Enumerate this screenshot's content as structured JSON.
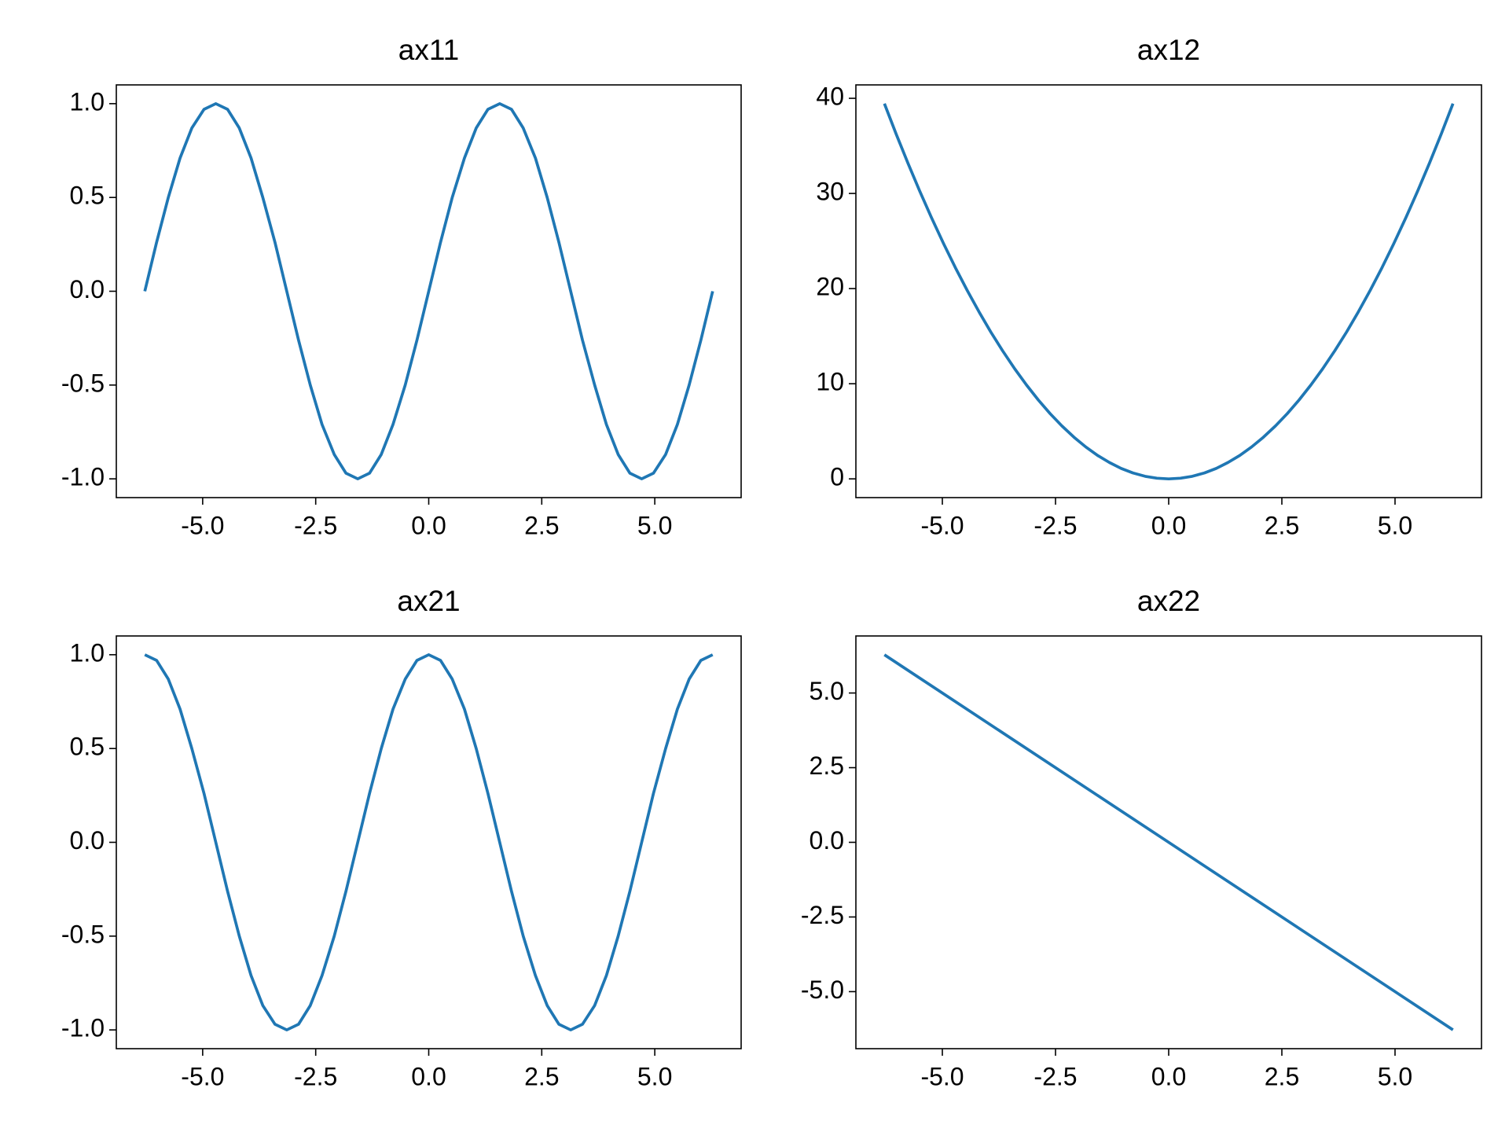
{
  "chart_data": [
    {
      "type": "line",
      "title": "ax11",
      "color": "#1f77b4",
      "x": [
        -6.28,
        -6.02,
        -5.76,
        -5.5,
        -5.24,
        -4.97,
        -4.71,
        -4.45,
        -4.19,
        -3.93,
        -3.67,
        -3.4,
        -3.14,
        -2.88,
        -2.62,
        -2.36,
        -2.09,
        -1.83,
        -1.57,
        -1.31,
        -1.05,
        -0.79,
        -0.52,
        -0.26,
        0,
        0.26,
        0.52,
        0.79,
        1.05,
        1.31,
        1.57,
        1.83,
        2.09,
        2.36,
        2.62,
        2.88,
        3.14,
        3.4,
        3.67,
        3.93,
        4.19,
        4.45,
        4.71,
        4.97,
        5.24,
        5.5,
        5.76,
        6.02,
        6.28
      ],
      "values": [
        0,
        0.26,
        0.5,
        0.71,
        0.87,
        0.97,
        1,
        0.97,
        0.87,
        0.71,
        0.5,
        0.26,
        0,
        -0.26,
        -0.5,
        -0.71,
        -0.87,
        -0.97,
        -1,
        -0.97,
        -0.87,
        -0.71,
        -0.5,
        -0.26,
        0,
        0.26,
        0.5,
        0.71,
        0.87,
        0.97,
        1,
        0.97,
        0.87,
        0.71,
        0.5,
        0.26,
        0,
        -0.26,
        -0.5,
        -0.71,
        -0.87,
        -0.97,
        -1,
        -0.97,
        -0.87,
        -0.71,
        -0.5,
        -0.26,
        0
      ],
      "xlim": [
        -6.91,
        6.91
      ],
      "ylim": [
        -1.1,
        1.1
      ],
      "xticks": [
        {
          "value": -5,
          "label": "-5.0"
        },
        -2.5,
        {
          "value": 0,
          "label": "0.0"
        },
        2.5,
        {
          "value": 5,
          "label": "5.0"
        }
      ],
      "yticks": [
        {
          "value": -1,
          "label": "-1.0"
        },
        -0.5,
        {
          "value": 0,
          "label": "0.0"
        },
        0.5,
        {
          "value": 1,
          "label": "1.0"
        }
      ]
    },
    {
      "type": "line",
      "title": "ax12",
      "color": "#1f77b4",
      "x": [
        -6.28,
        -6.02,
        -5.76,
        -5.5,
        -5.24,
        -4.97,
        -4.71,
        -4.45,
        -4.19,
        -3.93,
        -3.67,
        -3.4,
        -3.14,
        -2.88,
        -2.62,
        -2.36,
        -2.09,
        -1.83,
        -1.57,
        -1.31,
        -1.05,
        -0.79,
        -0.52,
        -0.26,
        0,
        0.26,
        0.52,
        0.79,
        1.05,
        1.31,
        1.57,
        1.83,
        2.09,
        2.36,
        2.62,
        2.88,
        3.14,
        3.4,
        3.67,
        3.93,
        4.19,
        4.45,
        4.71,
        4.97,
        5.24,
        5.5,
        5.76,
        6.02,
        6.28
      ],
      "values": [
        39.44,
        36.24,
        33.18,
        30.25,
        27.46,
        24.7,
        22.18,
        19.8,
        17.56,
        15.44,
        13.47,
        11.56,
        9.86,
        8.29,
        6.86,
        5.57,
        4.37,
        3.35,
        2.46,
        1.72,
        1.1,
        0.62,
        0.27,
        0.07,
        0,
        0.07,
        0.27,
        0.62,
        1.1,
        1.72,
        2.46,
        3.35,
        4.37,
        5.57,
        6.86,
        8.29,
        9.86,
        11.56,
        13.47,
        15.44,
        17.56,
        19.8,
        22.18,
        24.7,
        27.46,
        30.25,
        33.18,
        36.24,
        39.44
      ],
      "xlim": [
        -6.91,
        6.91
      ],
      "ylim": [
        -1.97,
        41.41
      ],
      "xticks": [
        {
          "value": -5,
          "label": "-5.0"
        },
        -2.5,
        {
          "value": 0,
          "label": "0.0"
        },
        2.5,
        {
          "value": 5,
          "label": "5.0"
        }
      ],
      "yticks": [
        0,
        10,
        20,
        30,
        40
      ]
    },
    {
      "type": "line",
      "title": "ax21",
      "color": "#1f77b4",
      "x": [
        -6.28,
        -6.02,
        -5.76,
        -5.5,
        -5.24,
        -4.97,
        -4.71,
        -4.45,
        -4.19,
        -3.93,
        -3.67,
        -3.4,
        -3.14,
        -2.88,
        -2.62,
        -2.36,
        -2.09,
        -1.83,
        -1.57,
        -1.31,
        -1.05,
        -0.79,
        -0.52,
        -0.26,
        0,
        0.26,
        0.52,
        0.79,
        1.05,
        1.31,
        1.57,
        1.83,
        2.09,
        2.36,
        2.62,
        2.88,
        3.14,
        3.4,
        3.67,
        3.93,
        4.19,
        4.45,
        4.71,
        4.97,
        5.24,
        5.5,
        5.76,
        6.02,
        6.28
      ],
      "values": [
        1,
        0.97,
        0.87,
        0.71,
        0.5,
        0.26,
        0,
        -0.26,
        -0.5,
        -0.71,
        -0.87,
        -0.97,
        -1,
        -0.97,
        -0.87,
        -0.71,
        -0.5,
        -0.26,
        0,
        0.26,
        0.5,
        0.71,
        0.87,
        0.97,
        1,
        0.97,
        0.87,
        0.71,
        0.5,
        0.26,
        0,
        -0.26,
        -0.5,
        -0.71,
        -0.87,
        -0.97,
        -1,
        -0.97,
        -0.87,
        -0.71,
        -0.5,
        -0.26,
        0,
        0.26,
        0.5,
        0.71,
        0.87,
        0.97,
        1
      ],
      "xlim": [
        -6.91,
        6.91
      ],
      "ylim": [
        -1.1,
        1.1
      ],
      "xticks": [
        {
          "value": -5,
          "label": "-5.0"
        },
        -2.5,
        {
          "value": 0,
          "label": "0.0"
        },
        2.5,
        {
          "value": 5,
          "label": "5.0"
        }
      ],
      "yticks": [
        {
          "value": -1,
          "label": "-1.0"
        },
        -0.5,
        {
          "value": 0,
          "label": "0.0"
        },
        0.5,
        {
          "value": 1,
          "label": "1.0"
        }
      ]
    },
    {
      "type": "line",
      "title": "ax22",
      "color": "#1f77b4",
      "x": [
        -6.28,
        6.28
      ],
      "values": [
        6.28,
        -6.28
      ],
      "xlim": [
        -6.91,
        6.91
      ],
      "ylim": [
        -6.91,
        6.91
      ],
      "xticks": [
        {
          "value": -5,
          "label": "-5.0"
        },
        -2.5,
        {
          "value": 0,
          "label": "0.0"
        },
        2.5,
        {
          "value": 5,
          "label": "5.0"
        }
      ],
      "yticks": [
        {
          "value": -5,
          "label": "-5.0"
        },
        -2.5,
        {
          "value": 0,
          "label": "0.0"
        },
        2.5,
        {
          "value": 5,
          "label": "5.0"
        }
      ]
    }
  ]
}
